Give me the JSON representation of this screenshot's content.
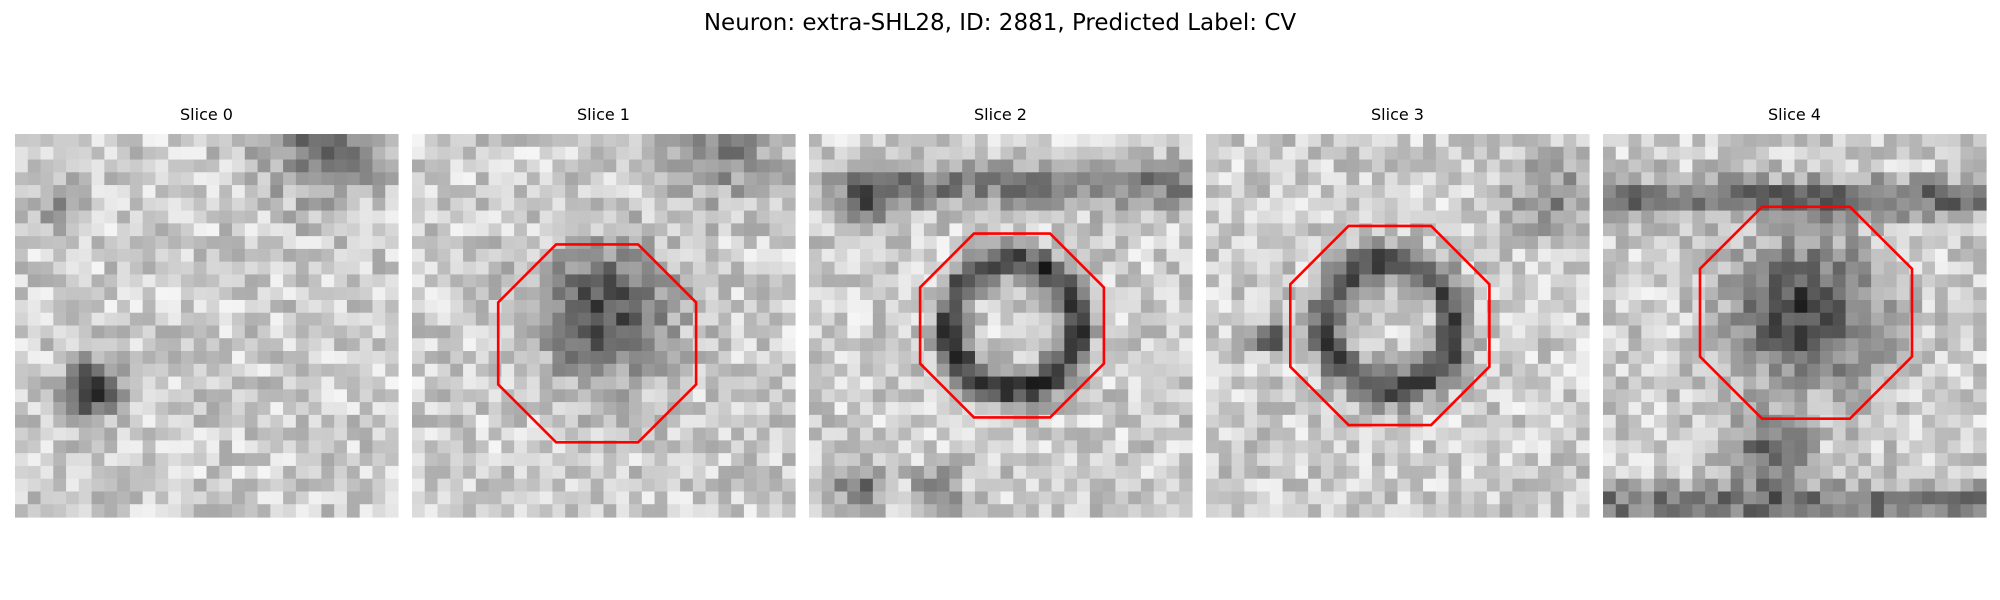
{
  "title": "Neuron: extra-SHL28, ID: 2881, Predicted Label: CV",
  "panels": [
    {
      "title": "Slice 0"
    },
    {
      "title": "Slice 1"
    },
    {
      "title": "Slice 2"
    },
    {
      "title": "Slice 3"
    },
    {
      "title": "Slice 4"
    }
  ]
}
